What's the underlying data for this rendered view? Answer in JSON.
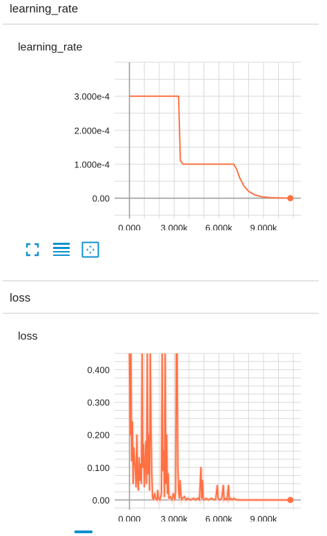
{
  "sections": [
    {
      "title": "learning_rate"
    },
    {
      "title": "loss"
    }
  ],
  "colors": {
    "series": "#ff7043",
    "series_faded": "#ffccbc",
    "grid": "#d8d8d8",
    "axis": "#9e9e9e",
    "toolbar": "#0c8fd0"
  },
  "toolbar_icons": [
    "fullscreen-icon",
    "toggle-log-scale-icon",
    "fit-domain-icon"
  ],
  "chart_data": [
    {
      "type": "line",
      "title": "learning_rate",
      "x_ticks": [
        "0.000",
        "3.000k",
        "6.000k",
        "9.000k"
      ],
      "y_ticks": [
        "0.00",
        "1.000e-4",
        "2.000e-4",
        "3.000e-4"
      ],
      "xlim": [
        -1000,
        11500
      ],
      "ylim": [
        -6e-05,
        0.0004
      ],
      "grid": true,
      "series": [
        {
          "values": [
            [
              0,
              0.0003
            ],
            [
              3300,
              0.0003
            ],
            [
              3360,
              0.0002
            ],
            [
              3420,
              0.00011
            ],
            [
              3600,
              0.0001
            ],
            [
              7000,
              0.0001
            ],
            [
              7200,
              8.5e-05
            ],
            [
              7400,
              6e-05
            ],
            [
              7700,
              3.5e-05
            ],
            [
              8000,
              2e-05
            ],
            [
              8400,
              1e-05
            ],
            [
              8900,
              4e-06
            ],
            [
              9500,
              1.5e-06
            ],
            [
              10400,
              3e-07
            ],
            [
              10800,
              0
            ]
          ],
          "last_point": [
            10800,
            0
          ]
        }
      ]
    },
    {
      "type": "line",
      "title": "loss",
      "x_ticks": [
        "0.000",
        "3.000k",
        "6.000k",
        "9.000k"
      ],
      "y_ticks": [
        "0.00",
        "0.100",
        "0.200",
        "0.300",
        "0.400"
      ],
      "xlim": [
        -1000,
        11500
      ],
      "ylim": [
        -0.03,
        0.45
      ],
      "grid": true,
      "series": [
        {
          "values": [
            [
              0,
              0.45
            ],
            [
              50,
              0.2
            ],
            [
              100,
              0.45
            ],
            [
              150,
              0.12
            ],
            [
              200,
              0.24
            ],
            [
              250,
              0.05
            ],
            [
              300,
              0.16
            ],
            [
              400,
              0.09
            ],
            [
              450,
              0.04
            ],
            [
              500,
              0.2
            ],
            [
              550,
              0.06
            ],
            [
              600,
              0.03
            ],
            [
              650,
              0.13
            ],
            [
              700,
              0.06
            ],
            [
              750,
              0.11
            ],
            [
              800,
              0.05
            ],
            [
              850,
              0.45
            ],
            [
              900,
              0.1
            ],
            [
              950,
              0.17
            ],
            [
              1000,
              0.04
            ],
            [
              1100,
              0.18
            ],
            [
              1150,
              0.05
            ],
            [
              1200,
              0.45
            ],
            [
              1250,
              0.08
            ],
            [
              1300,
              0.2
            ],
            [
              1350,
              0.03
            ],
            [
              1400,
              0.45
            ],
            [
              1450,
              0.22
            ],
            [
              1500,
              0.08
            ],
            [
              1550,
              0.01
            ],
            [
              1600,
              0.0
            ],
            [
              1700,
              0.02
            ],
            [
              1750,
              0.005
            ],
            [
              1850,
              0.0
            ],
            [
              1900,
              0.03
            ],
            [
              1950,
              0.005
            ],
            [
              2050,
              0.0
            ],
            [
              2150,
              0.02
            ],
            [
              2200,
              0.45
            ],
            [
              2250,
              0.09
            ],
            [
              2300,
              0.15
            ],
            [
              2350,
              0.01
            ],
            [
              2400,
              0.45
            ],
            [
              2450,
              0.05
            ],
            [
              2500,
              0.2
            ],
            [
              2550,
              0.02
            ],
            [
              2600,
              0.08
            ],
            [
              2650,
              0.005
            ],
            [
              2750,
              0.01
            ],
            [
              2850,
              0.0
            ],
            [
              2950,
              0.02
            ],
            [
              3050,
              0.0
            ],
            [
              3100,
              0.03
            ],
            [
              3150,
              0.45
            ],
            [
              3200,
              0.45
            ],
            [
              3250,
              0.1
            ],
            [
              3300,
              0.03
            ],
            [
              3350,
              0.005
            ],
            [
              3400,
              0.06
            ],
            [
              3450,
              0.02
            ],
            [
              3500,
              0.0
            ],
            [
              3550,
              0.005
            ],
            [
              3700,
              0.01
            ],
            [
              3800,
              0.0
            ],
            [
              3900,
              0.005
            ],
            [
              4100,
              0.0
            ],
            [
              4300,
              0.005
            ],
            [
              4450,
              0.0
            ],
            [
              4600,
              0.006
            ],
            [
              4700,
              0.0
            ],
            [
              4800,
              0.1
            ],
            [
              4850,
              0.005
            ],
            [
              4900,
              0.06
            ],
            [
              4950,
              0.005
            ],
            [
              5000,
              0.0
            ],
            [
              5150,
              0.005
            ],
            [
              5300,
              0.0
            ],
            [
              5500,
              0.005
            ],
            [
              5700,
              0.0
            ],
            [
              5800,
              0.005
            ],
            [
              5900,
              0.045
            ],
            [
              5950,
              0.005
            ],
            [
              6050,
              0.0
            ],
            [
              6200,
              0.005
            ],
            [
              6300,
              0.045
            ],
            [
              6350,
              0.0
            ],
            [
              6450,
              0.005
            ],
            [
              6550,
              0.0
            ],
            [
              6650,
              0.045
            ],
            [
              6700,
              0.0
            ],
            [
              6800,
              0.005
            ],
            [
              6900,
              0.0
            ],
            [
              7000,
              0.005
            ],
            [
              7200,
              0.0
            ],
            [
              8000,
              0.0
            ],
            [
              9000,
              0.0
            ],
            [
              10000,
              0.0
            ],
            [
              10800,
              0.0
            ]
          ],
          "last_point": [
            10800,
            0
          ]
        }
      ]
    }
  ]
}
